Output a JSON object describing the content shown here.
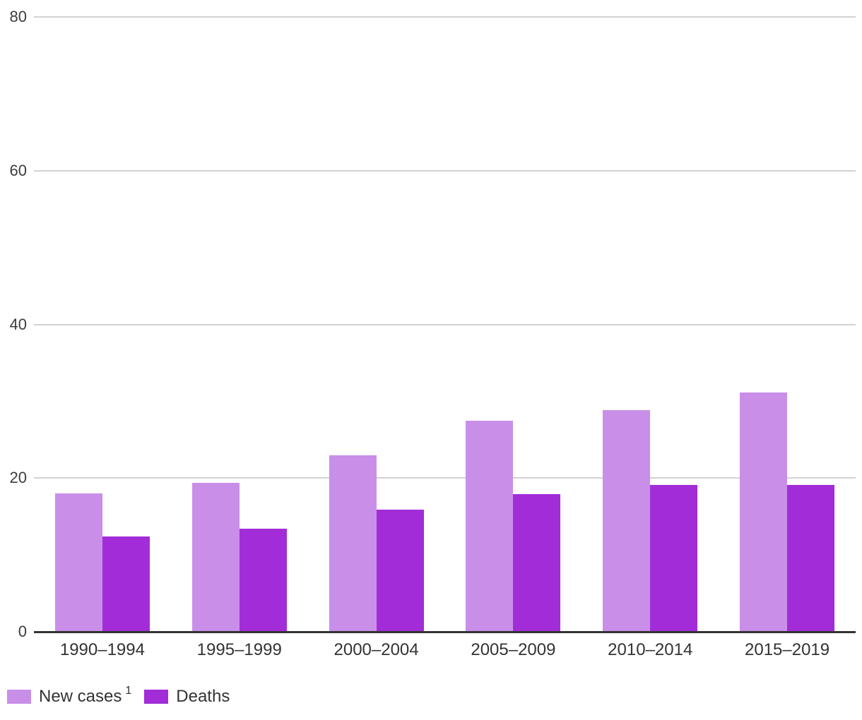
{
  "chart_data": {
    "type": "bar",
    "title": "",
    "xlabel": "",
    "ylabel": "",
    "categories": [
      "1990–1994",
      "1995–1999",
      "2000–2004",
      "2005–2009",
      "2010–2014",
      "2015–2019"
    ],
    "series": [
      {
        "name": "New cases",
        "name_superscript": "1",
        "color": "#C98FE8",
        "values": [
          18.0,
          19.4,
          23.0,
          27.5,
          28.8,
          31.1
        ]
      },
      {
        "name": "Deaths",
        "name_superscript": "",
        "color": "#A22DD8",
        "values": [
          12.4,
          13.4,
          15.9,
          17.9,
          19.1,
          19.1
        ]
      }
    ],
    "ylim": [
      0,
      80
    ],
    "yticks": [
      0,
      20,
      40,
      60,
      80
    ],
    "grid": true,
    "legend_position": "bottom-left"
  },
  "colors": {
    "background": "#ffffff",
    "gridline": "#d2d2d2",
    "axis_line": "#333333",
    "tick_label": "#3c3c3c",
    "category_label": "#333333",
    "legend_text": "#333333"
  },
  "layout_values": {
    "y_tick_labels": [
      "0",
      "20",
      "40",
      "60",
      "80"
    ]
  }
}
